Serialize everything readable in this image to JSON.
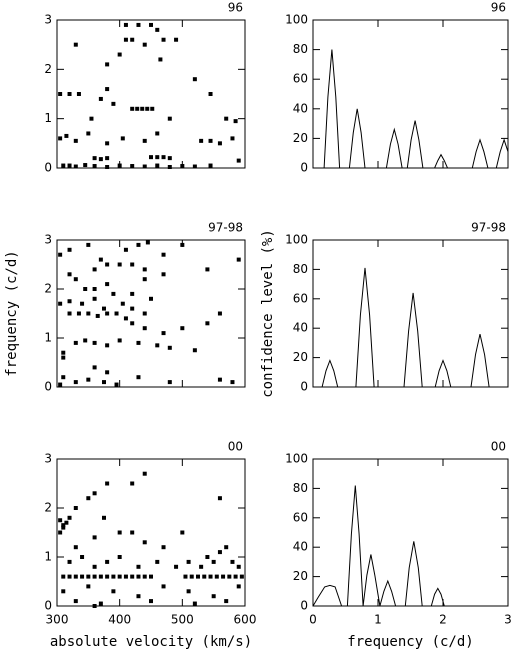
{
  "chart_data": [
    {
      "type": "scatter",
      "label": "96",
      "xlim": [
        300,
        600
      ],
      "ylim": [
        0,
        3
      ],
      "xticks": [
        300,
        400,
        500,
        600
      ],
      "yticks": [
        0,
        1,
        2,
        3
      ],
      "show_xtick_labels": false,
      "color": "#000000",
      "x": [
        310,
        320,
        330,
        345,
        360,
        380,
        400,
        420,
        440,
        460,
        480,
        500,
        520,
        545,
        360,
        370,
        380,
        450,
        460,
        470,
        480,
        590,
        305,
        315,
        330,
        350,
        380,
        405,
        440,
        460,
        530,
        545,
        560,
        580,
        305,
        320,
        335,
        370,
        380,
        390,
        420,
        428,
        436,
        444,
        452,
        355,
        480,
        570,
        585,
        330,
        380,
        400,
        410,
        420,
        440,
        450,
        460,
        470,
        490,
        520,
        545,
        410,
        430,
        465
      ],
      "values": [
        0.05,
        0.05,
        0.03,
        0.06,
        0.04,
        0.02,
        0.05,
        0.04,
        0.03,
        0.05,
        0.02,
        0.04,
        0.03,
        0.05,
        0.2,
        0.18,
        0.2,
        0.22,
        0.22,
        0.22,
        0.2,
        0.15,
        0.6,
        0.65,
        0.55,
        0.7,
        0.5,
        0.6,
        0.55,
        0.7,
        0.55,
        0.55,
        0.5,
        0.6,
        1.5,
        1.5,
        1.5,
        1.4,
        1.6,
        1.3,
        1.2,
        1.2,
        1.2,
        1.2,
        1.2,
        1.0,
        1.0,
        1.0,
        0.95,
        2.5,
        2.1,
        2.3,
        2.6,
        2.6,
        2.5,
        2.9,
        2.8,
        2.6,
        2.6,
        1.8,
        1.5,
        2.9,
        2.9,
        2.2
      ]
    },
    {
      "type": "line",
      "label": "96",
      "xlim": [
        0,
        3
      ],
      "ylim": [
        0,
        100
      ],
      "xticks": [
        0,
        1,
        2,
        3
      ],
      "yticks": [
        0,
        20,
        40,
        60,
        80,
        100
      ],
      "show_xtick_labels": false,
      "color": "#000000",
      "x": [
        0,
        0.17,
        0.23,
        0.29,
        0.35,
        0.41,
        0.56,
        0.62,
        0.68,
        0.74,
        0.8,
        1.13,
        1.19,
        1.25,
        1.31,
        1.37,
        1.45,
        1.51,
        1.57,
        1.63,
        1.69,
        1.87,
        1.92,
        1.97,
        2.02,
        2.07,
        2.45,
        2.51,
        2.57,
        2.63,
        2.69,
        2.82,
        2.88,
        2.94,
        3.0
      ],
      "values": [
        0,
        0,
        48,
        80,
        48,
        0,
        0,
        24,
        40,
        24,
        0,
        0,
        16,
        26,
        16,
        0,
        0,
        19,
        32,
        19,
        0,
        0,
        5,
        9,
        5,
        0,
        0,
        11,
        19,
        11,
        0,
        0,
        11,
        19,
        11
      ]
    },
    {
      "type": "scatter",
      "label": "97-98",
      "xlim": [
        300,
        600
      ],
      "ylim": [
        0,
        3
      ],
      "xticks": [
        300,
        400,
        500,
        600
      ],
      "yticks": [
        0,
        1,
        2,
        3
      ],
      "show_xtick_labels": false,
      "color": "#000000",
      "ylabel": "frequency (c/d)",
      "x": [
        305,
        310,
        330,
        350,
        375,
        395,
        430,
        480,
        560,
        580,
        310,
        330,
        345,
        360,
        380,
        400,
        430,
        460,
        480,
        520,
        320,
        335,
        350,
        365,
        380,
        395,
        410,
        420,
        440,
        470,
        500,
        540,
        305,
        320,
        340,
        360,
        375,
        390,
        405,
        420,
        440,
        450,
        560,
        330,
        345,
        360,
        380,
        400,
        420,
        440,
        305,
        320,
        350,
        370,
        410,
        430,
        445,
        470,
        540,
        590,
        320,
        360,
        380,
        420,
        440,
        470,
        500,
        310,
        360,
        380
      ],
      "values": [
        0.05,
        0.2,
        0.1,
        0.15,
        0.1,
        0.05,
        0.2,
        0.1,
        0.15,
        0.1,
        0.7,
        0.9,
        0.95,
        0.9,
        0.85,
        0.95,
        0.9,
        0.85,
        0.8,
        0.75,
        1.5,
        1.5,
        1.5,
        1.45,
        1.5,
        1.5,
        1.4,
        1.3,
        1.2,
        1.1,
        1.2,
        1.3,
        1.7,
        1.75,
        1.7,
        1.8,
        1.6,
        1.9,
        1.7,
        1.6,
        1.5,
        1.8,
        1.5,
        2.2,
        2.0,
        2.4,
        2.5,
        2.5,
        2.5,
        2.4,
        2.7,
        2.8,
        2.9,
        2.6,
        2.8,
        2.9,
        2.95,
        2.7,
        2.4,
        2.6,
        2.3,
        2.0,
        2.1,
        1.9,
        2.2,
        2.3,
        2.9,
        0.6,
        0.4,
        0.3
      ]
    },
    {
      "type": "line",
      "label": "97-98",
      "xlim": [
        0,
        3
      ],
      "ylim": [
        0,
        100
      ],
      "xticks": [
        0,
        1,
        2,
        3
      ],
      "yticks": [
        0,
        20,
        40,
        60,
        80,
        100
      ],
      "show_xtick_labels": false,
      "color": "#000000",
      "ylabel": "confidence level (%)",
      "x": [
        0,
        0.14,
        0.2,
        0.26,
        0.32,
        0.38,
        0.66,
        0.73,
        0.8,
        0.87,
        0.94,
        1.4,
        1.47,
        1.54,
        1.61,
        1.68,
        1.88,
        1.94,
        2.0,
        2.06,
        2.12,
        2.43,
        2.5,
        2.57,
        2.64,
        2.71,
        3.0
      ],
      "values": [
        0,
        0,
        11,
        18,
        11,
        0,
        0,
        49,
        81,
        49,
        0,
        0,
        38,
        64,
        38,
        0,
        0,
        11,
        18,
        11,
        0,
        0,
        22,
        36,
        22,
        0,
        0
      ]
    },
    {
      "type": "scatter",
      "label": "00",
      "xlim": [
        300,
        600
      ],
      "ylim": [
        0,
        3
      ],
      "xticks": [
        300,
        400,
        500,
        600
      ],
      "yticks": [
        0,
        1,
        2,
        3
      ],
      "show_xtick_labels": true,
      "color": "#000000",
      "xlabel": "absolute velocity (km/s)",
      "x": [
        310,
        320,
        330,
        340,
        350,
        360,
        370,
        380,
        390,
        400,
        410,
        420,
        430,
        440,
        450,
        505,
        515,
        525,
        535,
        545,
        555,
        565,
        575,
        585,
        595,
        305,
        310,
        315,
        320,
        305,
        310,
        330,
        350,
        360,
        375,
        330,
        360,
        400,
        420,
        440,
        470,
        500,
        540,
        560,
        580,
        320,
        340,
        360,
        380,
        400,
        430,
        460,
        490,
        510,
        530,
        550,
        570,
        590,
        310,
        350,
        390,
        430,
        470,
        510,
        550,
        590,
        330,
        370,
        450,
        520,
        570,
        420,
        560,
        360,
        380,
        440
      ],
      "values": [
        0.6,
        0.6,
        0.6,
        0.6,
        0.6,
        0.6,
        0.6,
        0.6,
        0.6,
        0.6,
        0.6,
        0.6,
        0.6,
        0.6,
        0.6,
        0.6,
        0.6,
        0.6,
        0.6,
        0.6,
        0.6,
        0.6,
        0.6,
        0.6,
        0.6,
        1.5,
        1.6,
        1.7,
        1.8,
        1.75,
        1.65,
        2.0,
        2.2,
        2.3,
        1.8,
        1.2,
        1.4,
        1.5,
        1.5,
        1.3,
        1.2,
        1.5,
        1.0,
        1.1,
        0.9,
        0.9,
        1.0,
        0.8,
        0.9,
        1.0,
        0.8,
        0.9,
        0.8,
        0.9,
        0.8,
        0.9,
        1.2,
        0.8,
        0.3,
        0.4,
        0.3,
        0.2,
        0.4,
        0.3,
        0.2,
        0.4,
        0.1,
        0.05,
        0.1,
        0.05,
        0.1,
        2.5,
        2.2,
        0.0,
        2.5,
        2.7
      ]
    },
    {
      "type": "line",
      "label": "00",
      "xlim": [
        0,
        3
      ],
      "ylim": [
        0,
        100
      ],
      "xticks": [
        0,
        1,
        2,
        3
      ],
      "yticks": [
        0,
        20,
        40,
        60,
        80,
        100
      ],
      "show_xtick_labels": true,
      "color": "#000000",
      "xlabel": "frequency (c/d)",
      "x": [
        0,
        0.08,
        0.18,
        0.26,
        0.34,
        0.44,
        0.53,
        0.59,
        0.65,
        0.71,
        0.77,
        0.83,
        0.89,
        0.95,
        1.03,
        1.09,
        1.15,
        1.21,
        1.27,
        1.42,
        1.48,
        1.55,
        1.62,
        1.68,
        1.82,
        1.87,
        1.92,
        1.97,
        2.02,
        3.0
      ],
      "values": [
        0,
        6,
        13,
        14,
        13,
        0,
        0,
        49,
        82,
        49,
        0,
        21,
        35,
        21,
        0,
        10,
        17,
        10,
        0,
        0,
        26,
        44,
        26,
        0,
        0,
        8,
        12,
        8,
        0,
        0
      ]
    }
  ]
}
